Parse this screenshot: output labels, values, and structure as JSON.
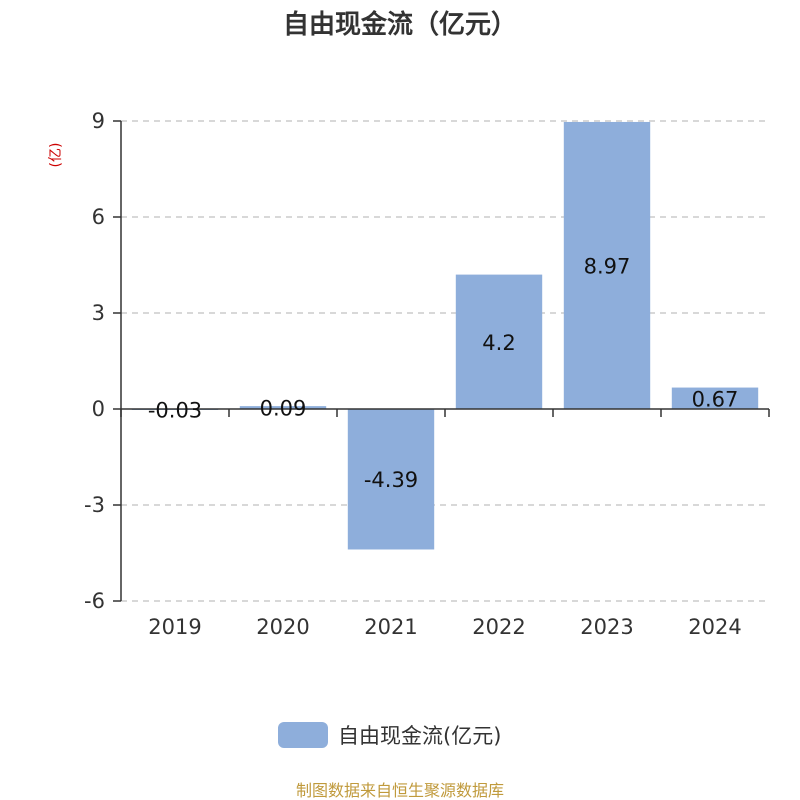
{
  "chart_data": {
    "type": "bar",
    "title": "自由现金流（亿元）",
    "ylabel": "(亿)",
    "categories": [
      "2019",
      "2020",
      "2021",
      "2022",
      "2023",
      "2024"
    ],
    "series": [
      {
        "name": "自由现金流(亿元)",
        "values": [
          -0.03,
          0.09,
          -4.39,
          4.2,
          8.97,
          0.67
        ],
        "data_labels": [
          "-0.03",
          "0.09",
          "-4.39",
          "4.2",
          "8.97",
          "0.67"
        ]
      }
    ],
    "ylim": [
      -6,
      9
    ],
    "yticks": [
      9,
      6,
      3,
      0,
      -3,
      -6
    ],
    "grid": true,
    "legend_position": "bottom"
  },
  "footer": {
    "source": "制图数据来自恒生聚源数据库"
  },
  "colors": {
    "bar": "#8eaedb",
    "axis": "#333333",
    "grid": "#cccccc",
    "unit": "#cc0000",
    "source": "#c09a3c"
  }
}
